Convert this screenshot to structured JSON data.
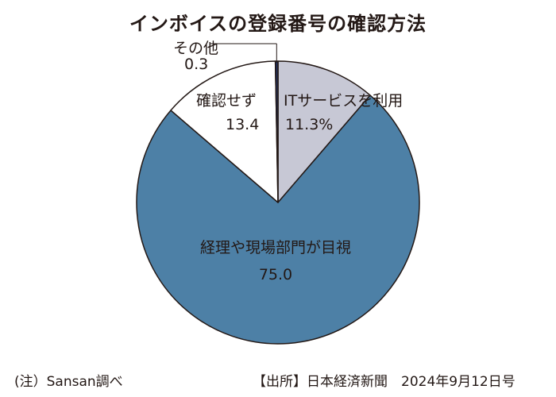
{
  "title": "インボイスの登録番号の確認方法",
  "chart_data": {
    "type": "pie",
    "slices": [
      {
        "label": "ITサービスを利用",
        "value": 11.3,
        "value_text": "11.3%",
        "color": "#c7c8d5"
      },
      {
        "label": "経理や現場部門が目視",
        "value": 75.0,
        "value_text": "75.0",
        "color": "#4d80a6"
      },
      {
        "label": "確認せず",
        "value": 13.4,
        "value_text": "13.4",
        "color": "#ffffff"
      },
      {
        "label": "その他",
        "value": 0.3,
        "value_text": "0.3",
        "color": "#1f2f5c"
      }
    ]
  },
  "footer": {
    "note": "(注）Sansan調べ",
    "source": "【出所】日本経済新聞　2024年9月12日号"
  }
}
